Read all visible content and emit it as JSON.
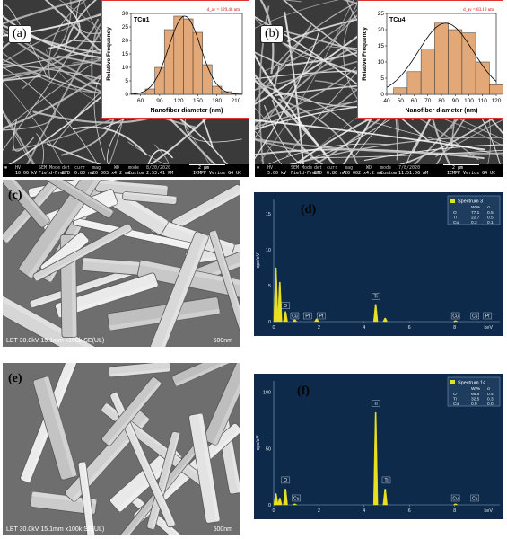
{
  "panels": {
    "a": {
      "letter": "(a)",
      "sem_bar": {
        "hv_label": "HV",
        "hv": "10.00 kV",
        "mode_label": "SEM Mode",
        "mode": "Field-Free",
        "det_label": "det",
        "det": "ETD",
        "curr_label": "curr",
        "curr": "0.80 nA",
        "mag_label": "mag",
        "mag": "20 003 x",
        "wd_label": "WD",
        "wd": "4.2 mm",
        "modeb_label": "mode",
        "modeb": "Custom",
        "date": "8/20/2020",
        "time": "2:53:41 PM",
        "scale": "2 µm",
        "device": "ICMPP Verios G4 UC"
      }
    },
    "b": {
      "letter": "(b)",
      "sem_bar": {
        "hv_label": "HV",
        "hv": "5.00 kV",
        "mode_label": "SEM Mode",
        "mode": "Field-Free",
        "det_label": "det",
        "det": "ETD",
        "curr_label": "curr",
        "curr": "0.80 nA",
        "mag_label": "mag",
        "mag": "20 002 x",
        "wd_label": "WD",
        "wd": "4.2 mm",
        "modeb_label": "mode",
        "modeb": "Custom",
        "date": "7/8/2020",
        "time": "11:51:06 AM",
        "scale": "2 µm",
        "device": "ICMPP Verios G4 UC"
      }
    },
    "c": {
      "letter": "(c)",
      "sem_label": "LBT 30.0kV 15.1mm x100k SE(UL)",
      "scale": "500nm"
    },
    "d": {
      "letter": "(d)"
    },
    "e": {
      "letter": "(e)",
      "sem_label": "LBT 30.0kV 15.1mm x100k SE(UL)",
      "scale": "500nm"
    },
    "f": {
      "letter": "(f)"
    }
  },
  "chart_data": [
    {
      "id": "hist-a",
      "type": "bar",
      "title": "TCu1",
      "annotation": "d_av = 129.46 nm",
      "xlabel": "Nanofiber diameter (nm)",
      "ylabel": "Relative Frequency",
      "x_ticks": [
        "60",
        "90",
        "120",
        "150",
        "180",
        "210"
      ],
      "tick_values": [
        60,
        90,
        120,
        150,
        180,
        210
      ],
      "xlim": [
        45,
        220
      ],
      "ylim": [
        0,
        30
      ],
      "y_ticks": [
        0,
        5,
        10,
        15,
        20,
        25,
        30
      ],
      "bin_centers": [
        60,
        75,
        90,
        105,
        120,
        135,
        150,
        165,
        180,
        195
      ],
      "values": [
        0.5,
        2,
        10,
        24,
        29,
        28,
        23,
        11,
        3,
        1
      ],
      "bar_color": "#e2a878",
      "fit": {
        "mean": 129.46,
        "sd": 25,
        "peak": 29
      }
    },
    {
      "id": "hist-b",
      "type": "bar",
      "title": "TCu4",
      "annotation": "d_av = 83.10 nm",
      "xlabel": "Nanofiber diameter (nm)",
      "ylabel": "Relative Frequency",
      "x_ticks": [
        "40",
        "50",
        "60",
        "70",
        "80",
        "90",
        "100",
        "110",
        "120"
      ],
      "tick_values": [
        40,
        50,
        60,
        70,
        80,
        90,
        100,
        110,
        120
      ],
      "xlim": [
        40,
        120
      ],
      "ylim": [
        0,
        25
      ],
      "y_ticks": [
        0,
        5,
        10,
        15,
        20,
        25
      ],
      "bin_centers": [
        50,
        60,
        70,
        80,
        90,
        100,
        110,
        120
      ],
      "values": [
        2,
        7,
        14,
        22,
        20,
        19,
        10,
        3
      ],
      "bar_color": "#e2a878",
      "fit": {
        "mean": 83.1,
        "sd": 20,
        "peak": 22
      }
    },
    {
      "id": "eds-d",
      "type": "line",
      "legend_title": "Spectrum 3",
      "legend_header": [
        "",
        "Wt%",
        "σ"
      ],
      "legend_rows": [
        [
          "O",
          "77.1",
          "0.5"
        ],
        [
          "Ti",
          "22.7",
          "0.5"
        ],
        [
          "Cu",
          "0.2",
          "0.1"
        ]
      ],
      "ylabel": "cps/eV",
      "xlabel": "keV",
      "x_ticks": [
        "0",
        "2",
        "4",
        "6",
        "8"
      ],
      "tick_values": [
        0,
        2,
        4,
        6,
        8
      ],
      "xlim": [
        0,
        10
      ],
      "y_ticks": [
        "0",
        "5",
        "10",
        "15"
      ],
      "y_tick_values": [
        0,
        5,
        10,
        15
      ],
      "ylim": [
        0,
        17
      ],
      "peaks": [
        [
          0.1,
          7.5
        ],
        [
          0.27,
          5.5
        ],
        [
          0.52,
          1.4
        ],
        [
          0.93,
          0.3
        ],
        [
          1.9,
          0.4
        ],
        [
          4.51,
          2.4
        ],
        [
          4.93,
          0.5
        ],
        [
          8.04,
          0.15
        ]
      ],
      "peak_labels": [
        {
          "text": "O",
          "x": 0.52,
          "y": 1.9
        },
        {
          "text": "Cu",
          "x": 0.93,
          "y": 0.5
        },
        {
          "text": "Pt",
          "x": 1.5,
          "y": 0.5
        },
        {
          "text": "Pt",
          "x": 2.1,
          "y": 0.5
        },
        {
          "text": "Ti",
          "x": 4.51,
          "y": 3.2
        },
        {
          "text": "Cu",
          "x": 8.04,
          "y": 0.5
        },
        {
          "text": "Cu",
          "x": 8.9,
          "y": 0.5
        },
        {
          "text": "Pt",
          "x": 9.45,
          "y": 0.5
        }
      ],
      "line_color": "#e8e020"
    },
    {
      "id": "eds-f",
      "type": "line",
      "legend_title": "Spectrum 14",
      "legend_header": [
        "",
        "Wt%",
        "σ"
      ],
      "legend_rows": [
        [
          "O",
          "66.5",
          "0.4"
        ],
        [
          "Ti",
          "32.5",
          "0.3"
        ],
        [
          "Cu",
          "0.9",
          "0.0"
        ]
      ],
      "ylabel": "cps/eV",
      "xlabel": "keV",
      "x_ticks": [
        "0",
        "2",
        "4",
        "6",
        "8"
      ],
      "tick_values": [
        0,
        2,
        4,
        6,
        8
      ],
      "xlim": [
        0,
        10
      ],
      "y_ticks": [
        "0",
        "50",
        "100"
      ],
      "y_tick_values": [
        0,
        50,
        100
      ],
      "ylim": [
        0,
        110
      ],
      "peaks": [
        [
          0.1,
          10
        ],
        [
          0.27,
          6
        ],
        [
          0.52,
          14
        ],
        [
          0.93,
          1
        ],
        [
          4.51,
          82
        ],
        [
          4.93,
          14
        ],
        [
          8.04,
          1
        ]
      ],
      "peak_labels": [
        {
          "text": "O",
          "x": 0.52,
          "y": 20
        },
        {
          "text": "Cu",
          "x": 1.0,
          "y": 4
        },
        {
          "text": "Ti",
          "x": 4.51,
          "y": 88
        },
        {
          "text": "Ti",
          "x": 4.98,
          "y": 20
        },
        {
          "text": "Cu",
          "x": 8.04,
          "y": 4
        },
        {
          "text": "Cu",
          "x": 8.9,
          "y": 4
        }
      ],
      "line_color": "#e8e020"
    }
  ]
}
